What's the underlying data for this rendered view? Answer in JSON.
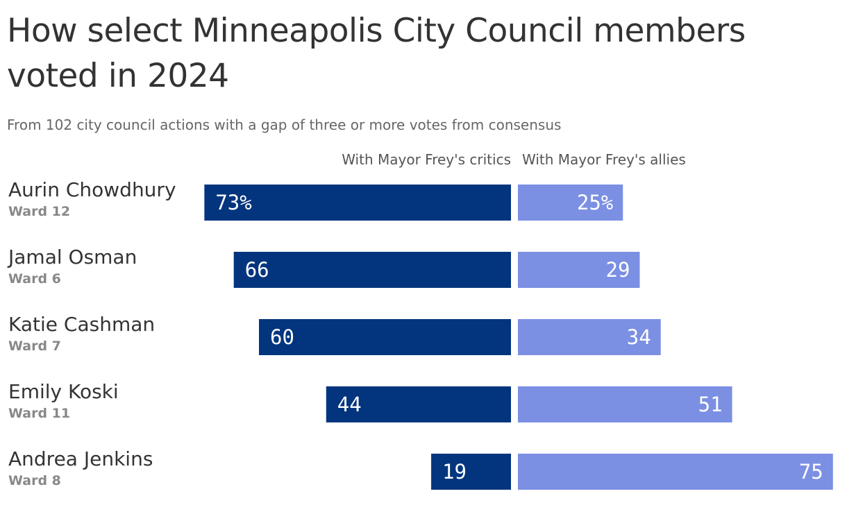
{
  "title": "How select Minneapolis City Council members voted in 2024",
  "subtitle": "From 102 city council actions with a gap of three or more votes from consensus",
  "chart_data": {
    "type": "bar",
    "orientation": "horizontal-diverging",
    "categories": [
      "Aurin Chowdhury",
      "Jamal Osman",
      "Katie Cashman",
      "Emily Koski",
      "Andrea Jenkins"
    ],
    "wards": [
      "Ward 12",
      "Ward 6",
      "Ward 7",
      "Ward 11",
      "Ward 8"
    ],
    "series": [
      {
        "name": "With Mayor Frey's critics",
        "values": [
          73,
          66,
          60,
          44,
          19
        ],
        "labels": [
          "73%",
          "66",
          "60",
          "44",
          "19"
        ],
        "color": "#03357e"
      },
      {
        "name": "With Mayor Frey's allies",
        "values": [
          25,
          29,
          34,
          51,
          75
        ],
        "labels": [
          "25%",
          "29",
          "34",
          "51",
          "75"
        ],
        "color": "#7b8fe3"
      }
    ],
    "xlim": [
      0,
      75
    ],
    "grid": false
  }
}
